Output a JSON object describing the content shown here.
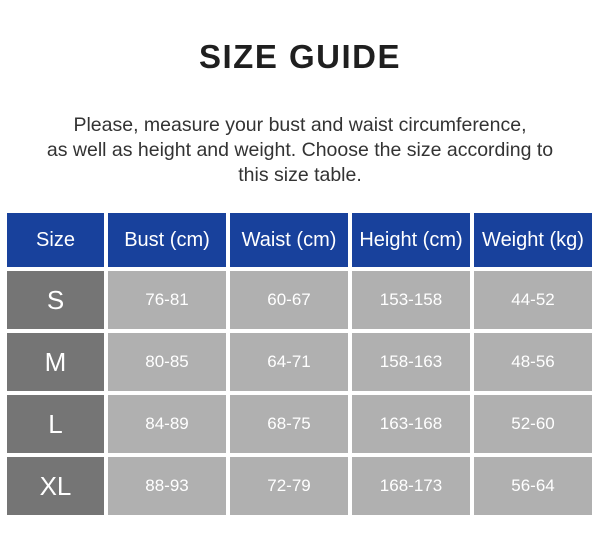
{
  "page": {
    "title": "SIZE GUIDE",
    "description_lines": [
      "Please, measure your bust and waist circumference,",
      "as well as height and weight. Choose the size according to",
      "this size table."
    ]
  },
  "chart_data": {
    "type": "table",
    "title": "SIZE GUIDE",
    "columns": [
      "Size",
      "Bust (cm)",
      "Waist (cm)",
      "Height (cm)",
      "Weight (kg)"
    ],
    "rows": [
      [
        "S",
        "76-81",
        "60-67",
        "153-158",
        "44-52"
      ],
      [
        "M",
        "80-85",
        "64-71",
        "158-163",
        "48-56"
      ],
      [
        "L",
        "84-89",
        "68-75",
        "163-168",
        "52-60"
      ],
      [
        "XL",
        "88-93",
        "72-79",
        "168-173",
        "56-64"
      ]
    ]
  },
  "colors": {
    "header_bg": "#18419c",
    "size_column_bg": "#757575",
    "value_cell_bg": "#b0b0b0",
    "table_gap": "#ffffff",
    "cell_text": "#ffffff",
    "title_text": "#1f1f1f",
    "body_text": "#333333"
  }
}
